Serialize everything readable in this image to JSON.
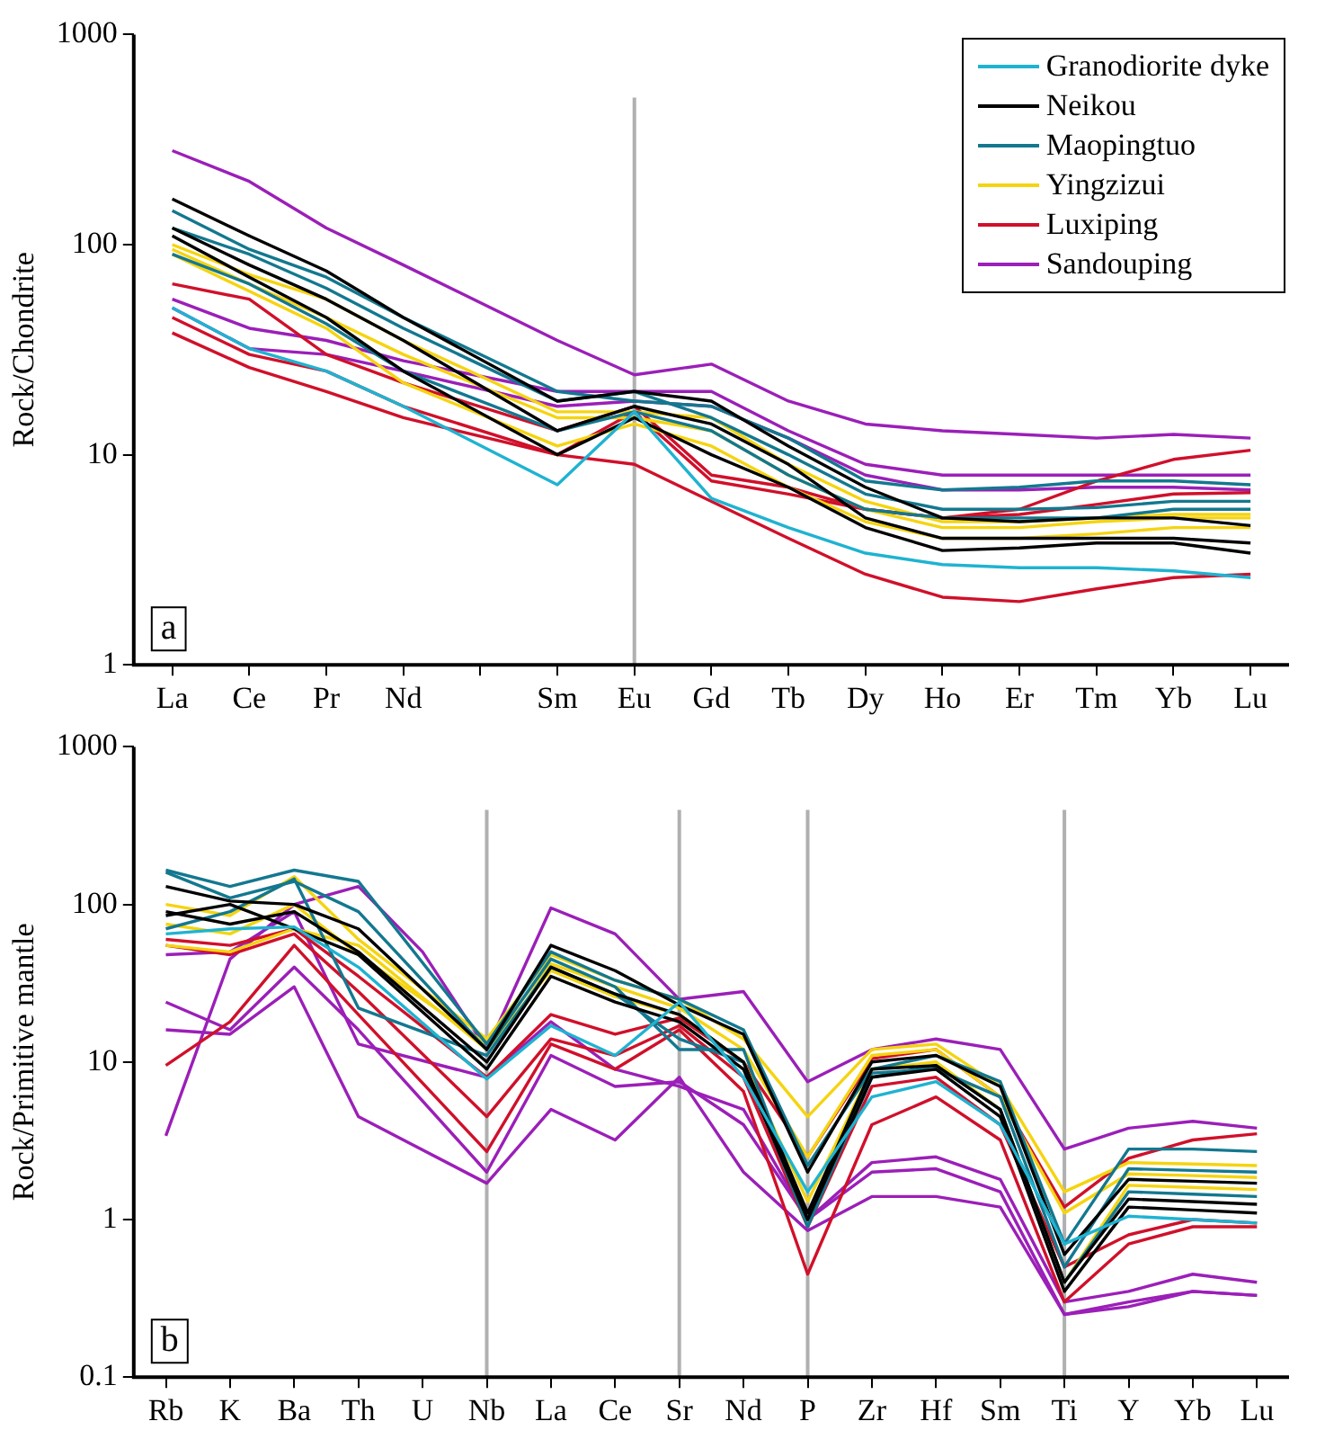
{
  "chart_data": [
    {
      "type": "line",
      "categories": [
        "La",
        "Ce",
        "Pr",
        "Nd",
        null,
        "Sm",
        "Eu",
        "Gd",
        "Tb",
        "Dy",
        "Ho",
        "Er",
        "Tm",
        "Yb",
        "Lu"
      ],
      "ylabel": "Rock/Chondrite",
      "log": "y",
      "ylim": [
        1,
        1000
      ],
      "yticks": [
        1,
        10,
        100,
        1000
      ],
      "grid": false,
      "legend": "top right",
      "marker": "none",
      "line_style": "solid",
      "ref_lines": [
        {
          "axis": "x",
          "value": "Eu",
          "color": "#b0b0b0"
        }
      ],
      "annotations": [
        "a"
      ],
      "series": [
        {
          "name": "Granodiorite dyke",
          "color": "#1fb3d1",
          "values": [
            50,
            32,
            25,
            17,
            null,
            7.2,
            16,
            6.2,
            4.5,
            3.4,
            3,
            2.9,
            2.9,
            2.8,
            2.6
          ]
        },
        {
          "name": "Neikou",
          "color": "#000000",
          "values": [
            165,
            110,
            75,
            45,
            null,
            18,
            20,
            18,
            11,
            7,
            5,
            4.8,
            5,
            5,
            4.6
          ]
        },
        {
          "color": "#000000",
          "values": [
            120,
            80,
            55,
            35,
            null,
            13,
            17,
            14,
            9,
            5,
            4,
            4,
            4,
            4,
            3.8
          ]
        },
        {
          "color": "#000000",
          "values": [
            110,
            70,
            45,
            25,
            null,
            10,
            15,
            10,
            7,
            4.5,
            3.5,
            3.6,
            3.8,
            3.8,
            3.4
          ]
        },
        {
          "name": "Maopingtuo",
          "color": "#13788f",
          "values": [
            145,
            95,
            70,
            45,
            null,
            20,
            18,
            17,
            12,
            7.5,
            6.8,
            7,
            7.5,
            7.5,
            7.2
          ]
        },
        {
          "color": "#13788f",
          "values": [
            120,
            90,
            62,
            40,
            null,
            18,
            20,
            15,
            10,
            6.5,
            5.5,
            5.5,
            5.6,
            6,
            6
          ]
        },
        {
          "color": "#13788f",
          "values": [
            90,
            65,
            42,
            25,
            null,
            13,
            16,
            13,
            8,
            5.5,
            5,
            5,
            5,
            5.5,
            5.5
          ]
        },
        {
          "name": "Yingzizui",
          "color": "#f5d410",
          "values": [
            100,
            72,
            55,
            35,
            null,
            16,
            16,
            15,
            9,
            6,
            4.8,
            4.8,
            5,
            5.2,
            5.2
          ]
        },
        {
          "color": "#f5d410",
          "values": [
            95,
            65,
            45,
            30,
            null,
            15,
            15,
            13,
            8,
            5.5,
            4.5,
            4.5,
            4.8,
            5,
            5
          ]
        },
        {
          "color": "#f5d410",
          "values": [
            90,
            60,
            40,
            22,
            null,
            11,
            14,
            11,
            7,
            4.8,
            4,
            4,
            4.2,
            4.5,
            4.5
          ]
        },
        {
          "name": "Luxiping",
          "color": "#d0102a",
          "values": [
            65,
            55,
            30,
            22,
            null,
            13,
            17,
            8,
            7,
            5.5,
            5,
            5.5,
            7.5,
            9.5,
            10.5
          ]
        },
        {
          "color": "#d0102a",
          "values": [
            45,
            30,
            25,
            17,
            null,
            10,
            16,
            7.5,
            6.5,
            5.5,
            5,
            5.2,
            5.8,
            6.5,
            6.6
          ]
        },
        {
          "color": "#d0102a",
          "values": [
            38,
            26,
            20,
            15,
            null,
            10,
            9,
            6,
            4,
            2.7,
            2.1,
            2,
            2.3,
            2.6,
            2.7
          ]
        },
        {
          "name": "Sandouping",
          "color": "#9b1fb8",
          "values": [
            280,
            200,
            120,
            80,
            null,
            35,
            24,
            27,
            18,
            14,
            13,
            12.5,
            12,
            12.5,
            12
          ]
        },
        {
          "color": "#9b1fb8",
          "values": [
            55,
            40,
            35,
            28,
            null,
            20,
            20,
            20,
            13,
            9,
            8,
            8,
            8,
            8,
            8
          ]
        },
        {
          "color": "#9b1fb8",
          "values": [
            50,
            32,
            30,
            25,
            null,
            17,
            18,
            17,
            12,
            8,
            6.8,
            6.8,
            7,
            7,
            6.8
          ]
        }
      ]
    },
    {
      "type": "line",
      "categories": [
        "Rb",
        "K",
        "Ba",
        "Th",
        "U",
        "Nb",
        "La",
        "Ce",
        "Sr",
        "Nd",
        "P",
        "Zr",
        "Hf",
        "Sm",
        "Ti",
        "Y",
        "Yb",
        "Lu"
      ],
      "ylabel": "Rock/Primitive mantle",
      "log": "y",
      "ylim": [
        0.1,
        1000
      ],
      "yticks": [
        0.1,
        1,
        10,
        100,
        1000
      ],
      "grid": false,
      "legend": false,
      "marker": "none",
      "line_style": "solid",
      "ref_lines": [
        {
          "axis": "x",
          "value": "Nb",
          "color": "#b0b0b0"
        },
        {
          "axis": "x",
          "value": "Sr",
          "color": "#b0b0b0"
        },
        {
          "axis": "x",
          "value": "P",
          "color": "#b0b0b0"
        },
        {
          "axis": "x",
          "value": "Ti",
          "color": "#b0b0b0"
        }
      ],
      "annotations": [
        "b"
      ],
      "series": [
        {
          "color": "#1fb3d1",
          "values": [
            65,
            70,
            72,
            40,
            null,
            7.8,
            17,
            11,
            24,
            8,
            1.5,
            6,
            7.5,
            4,
            0.7,
            1.05,
            1,
            0.95
          ]
        },
        {
          "color": "#000000",
          "values": [
            130,
            105,
            100,
            70,
            null,
            12,
            55,
            38,
            23,
            15,
            2,
            10,
            11,
            7,
            0.6,
            1.8,
            1.75,
            1.7
          ]
        },
        {
          "color": "#000000",
          "values": [
            90,
            75,
            90,
            50,
            null,
            10,
            40,
            27,
            20,
            10,
            1.1,
            9,
            9.5,
            5,
            0.4,
            1.35,
            1.3,
            1.25
          ]
        },
        {
          "color": "#000000",
          "values": [
            85,
            100,
            70,
            48,
            null,
            9,
            35,
            24,
            18,
            9,
            1,
            8,
            9,
            4.5,
            0.35,
            1.2,
            1.15,
            1.1
          ]
        },
        {
          "color": "#13788f",
          "values": [
            165,
            130,
            165,
            140,
            null,
            13,
            50,
            33,
            25,
            16,
            2.2,
            9,
            11,
            7.5,
            0.7,
            2.8,
            2.8,
            2.7
          ]
        },
        {
          "color": "#13788f",
          "values": [
            160,
            110,
            140,
            90,
            null,
            12,
            45,
            30,
            12,
            12,
            1,
            8.5,
            9,
            6,
            0.5,
            2.1,
            2.05,
            2
          ]
        },
        {
          "color": "#13788f",
          "values": [
            70,
            90,
            145,
            22,
            null,
            11,
            40,
            27,
            14,
            10,
            0.9,
            8,
            9.5,
            5,
            0.4,
            1.5,
            1.45,
            1.4
          ]
        },
        {
          "color": "#f5d410",
          "values": [
            100,
            85,
            150,
            60,
            null,
            14,
            48,
            33,
            25,
            14,
            4.5,
            12,
            13,
            7,
            1.5,
            2.3,
            2.25,
            2.2
          ]
        },
        {
          "color": "#f5d410",
          "values": [
            75,
            65,
            100,
            48,
            null,
            13,
            42,
            30,
            22,
            12,
            2.5,
            11,
            12,
            6,
            1.1,
            1.95,
            1.9,
            1.85
          ]
        },
        {
          "color": "#f5d410",
          "values": [
            55,
            50,
            70,
            55,
            null,
            12,
            38,
            26,
            20,
            10,
            1.3,
            9,
            10,
            5,
            0.4,
            1.65,
            1.6,
            1.55
          ]
        },
        {
          "color": "#d0102a",
          "values": [
            60,
            55,
            70,
            35,
            null,
            8,
            20,
            15,
            19,
            10,
            2.5,
            10.5,
            12,
            6,
            1.2,
            2.45,
            3.2,
            3.5
          ]
        },
        {
          "color": "#d0102a",
          "values": [
            55,
            48,
            65,
            28,
            null,
            4.5,
            14,
            11,
            17,
            8,
            0.9,
            7,
            8,
            4,
            0.5,
            0.8,
            1,
            0.95
          ]
        },
        {
          "color": "#d0102a",
          "values": [
            9.5,
            18,
            55,
            20,
            null,
            2.7,
            13,
            9,
            16,
            6.5,
            0.45,
            4,
            6,
            3.2,
            0.3,
            0.7,
            0.9,
            0.9
          ]
        },
        {
          "color": "#9b1fb8",
          "values": [
            3.4,
            45,
            100,
            130,
            50,
            12,
            95,
            65,
            25,
            28,
            7.5,
            12,
            14,
            12,
            2.8,
            3.8,
            4.2,
            3.8
          ]
        },
        {
          "color": "#9b1fb8",
          "values": [
            24,
            16,
            40,
            16,
            null,
            2,
            11,
            7,
            7.5,
            4,
            1,
            2.3,
            2.5,
            1.8,
            0.3,
            0.35,
            0.45,
            0.4
          ]
        },
        {
          "color": "#9b1fb8",
          "values": [
            16,
            15,
            30,
            4.5,
            null,
            1.7,
            5,
            3.2,
            8,
            2,
            0.85,
            1.4,
            1.4,
            1.2,
            0.25,
            0.28,
            0.35,
            0.33
          ]
        },
        {
          "color": "#9b1fb8",
          "values": [
            48,
            50,
            90,
            13,
            null,
            8,
            18,
            9,
            7,
            5,
            1,
            2,
            2.1,
            1.5,
            0.25,
            0.3,
            0.35,
            0.33
          ]
        }
      ]
    }
  ]
}
